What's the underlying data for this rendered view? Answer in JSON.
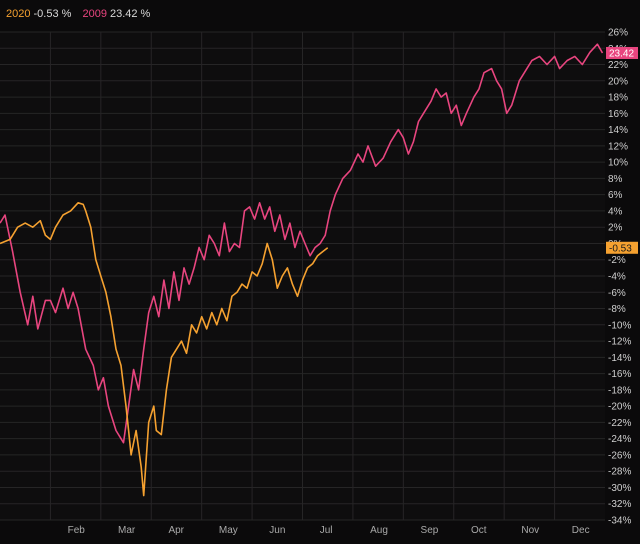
{
  "legend": [
    {
      "name": "2020",
      "value": "-0.53 %",
      "color": "#f5a130"
    },
    {
      "name": "2009",
      "value": "23.42 %",
      "color": "#e8457f"
    }
  ],
  "chart_data": {
    "type": "line",
    "x_unit": "month-fraction (0 = Jan 1, 12 = Dec 31)",
    "x_tick_labels": [
      "Feb",
      "Mar",
      "Apr",
      "May",
      "Jun",
      "Jul",
      "Aug",
      "Sep",
      "Oct",
      "Nov",
      "Dec"
    ],
    "x_tick_positions": [
      1.5,
      2.5,
      3.5,
      4.5,
      5.5,
      6.5,
      7.5,
      8.5,
      9.5,
      10.5,
      11.5
    ],
    "ylim": [
      -34,
      26
    ],
    "y_tick_step": 2,
    "y_tick_format": "{v}%",
    "grid": true,
    "series": [
      {
        "name": "2009",
        "color": "#e8457f",
        "last_value_label": "23.42",
        "last_value": 23.42,
        "points": [
          [
            0,
            2.5
          ],
          [
            0.1,
            3.5
          ],
          [
            0.25,
            -1
          ],
          [
            0.4,
            -6
          ],
          [
            0.55,
            -10
          ],
          [
            0.65,
            -6.5
          ],
          [
            0.75,
            -10.5
          ],
          [
            0.9,
            -7
          ],
          [
            1.0,
            -7
          ],
          [
            1.1,
            -8.5
          ],
          [
            1.25,
            -5.5
          ],
          [
            1.35,
            -8
          ],
          [
            1.45,
            -6
          ],
          [
            1.55,
            -8
          ],
          [
            1.7,
            -13
          ],
          [
            1.85,
            -15
          ],
          [
            1.95,
            -18
          ],
          [
            2.05,
            -16.5
          ],
          [
            2.15,
            -20
          ],
          [
            2.3,
            -23
          ],
          [
            2.45,
            -24.5
          ],
          [
            2.55,
            -20
          ],
          [
            2.65,
            -15.5
          ],
          [
            2.75,
            -18
          ],
          [
            2.85,
            -13
          ],
          [
            2.95,
            -8.5
          ],
          [
            3.05,
            -6.5
          ],
          [
            3.15,
            -9
          ],
          [
            3.25,
            -4.5
          ],
          [
            3.35,
            -8
          ],
          [
            3.45,
            -3.5
          ],
          [
            3.55,
            -7
          ],
          [
            3.65,
            -3
          ],
          [
            3.75,
            -5
          ],
          [
            3.85,
            -3
          ],
          [
            3.95,
            -0.5
          ],
          [
            4.05,
            -2
          ],
          [
            4.15,
            1
          ],
          [
            4.25,
            0
          ],
          [
            4.35,
            -1.5
          ],
          [
            4.45,
            2.5
          ],
          [
            4.55,
            -1
          ],
          [
            4.65,
            0
          ],
          [
            4.75,
            -0.5
          ],
          [
            4.85,
            4
          ],
          [
            4.95,
            4.5
          ],
          [
            5.05,
            3
          ],
          [
            5.15,
            5
          ],
          [
            5.25,
            3
          ],
          [
            5.35,
            4.5
          ],
          [
            5.45,
            1.5
          ],
          [
            5.55,
            3.5
          ],
          [
            5.65,
            0.5
          ],
          [
            5.75,
            2.5
          ],
          [
            5.85,
            -0.5
          ],
          [
            5.95,
            1.5
          ],
          [
            6.05,
            0
          ],
          [
            6.15,
            -1.5
          ],
          [
            6.25,
            -0.5
          ],
          [
            6.35,
            0
          ],
          [
            6.45,
            1
          ],
          [
            6.55,
            4
          ],
          [
            6.65,
            6
          ],
          [
            6.8,
            8
          ],
          [
            6.95,
            9
          ],
          [
            7.1,
            11
          ],
          [
            7.2,
            10
          ],
          [
            7.3,
            12
          ],
          [
            7.45,
            9.5
          ],
          [
            7.6,
            10.5
          ],
          [
            7.75,
            12.5
          ],
          [
            7.9,
            14
          ],
          [
            8.0,
            13
          ],
          [
            8.1,
            11
          ],
          [
            8.2,
            12.5
          ],
          [
            8.3,
            15
          ],
          [
            8.45,
            16.5
          ],
          [
            8.55,
            17.5
          ],
          [
            8.65,
            19
          ],
          [
            8.75,
            18
          ],
          [
            8.85,
            18.5
          ],
          [
            8.95,
            16
          ],
          [
            9.05,
            17
          ],
          [
            9.15,
            14.5
          ],
          [
            9.25,
            16
          ],
          [
            9.4,
            18
          ],
          [
            9.5,
            19
          ],
          [
            9.6,
            21
          ],
          [
            9.75,
            21.5
          ],
          [
            9.85,
            20
          ],
          [
            9.95,
            19
          ],
          [
            10.05,
            16
          ],
          [
            10.15,
            17
          ],
          [
            10.3,
            20
          ],
          [
            10.45,
            21.5
          ],
          [
            10.55,
            22.5
          ],
          [
            10.7,
            23
          ],
          [
            10.85,
            22
          ],
          [
            11.0,
            23
          ],
          [
            11.1,
            21.5
          ],
          [
            11.25,
            22.5
          ],
          [
            11.4,
            23
          ],
          [
            11.55,
            22
          ],
          [
            11.7,
            23.5
          ],
          [
            11.85,
            24.5
          ],
          [
            11.95,
            23.42
          ]
        ]
      },
      {
        "name": "2020",
        "color": "#f5a130",
        "last_value_label": "-0.53",
        "last_value": -0.53,
        "points": [
          [
            0,
            0
          ],
          [
            0.2,
            0.5
          ],
          [
            0.35,
            2
          ],
          [
            0.5,
            2.5
          ],
          [
            0.65,
            2
          ],
          [
            0.8,
            2.8
          ],
          [
            0.9,
            1
          ],
          [
            1.0,
            0.5
          ],
          [
            1.1,
            2
          ],
          [
            1.25,
            3.5
          ],
          [
            1.4,
            4
          ],
          [
            1.55,
            5
          ],
          [
            1.65,
            4.8
          ],
          [
            1.7,
            4
          ],
          [
            1.8,
            2
          ],
          [
            1.9,
            -2
          ],
          [
            2.0,
            -4
          ],
          [
            2.1,
            -6
          ],
          [
            2.2,
            -9
          ],
          [
            2.3,
            -13
          ],
          [
            2.4,
            -15
          ],
          [
            2.5,
            -20
          ],
          [
            2.55,
            -23
          ],
          [
            2.6,
            -26
          ],
          [
            2.7,
            -23
          ],
          [
            2.8,
            -27.5
          ],
          [
            2.85,
            -31
          ],
          [
            2.95,
            -22
          ],
          [
            3.05,
            -20
          ],
          [
            3.1,
            -23
          ],
          [
            3.2,
            -23.5
          ],
          [
            3.3,
            -18
          ],
          [
            3.4,
            -14
          ],
          [
            3.5,
            -13
          ],
          [
            3.6,
            -12
          ],
          [
            3.7,
            -13.5
          ],
          [
            3.8,
            -10
          ],
          [
            3.9,
            -11
          ],
          [
            4.0,
            -9
          ],
          [
            4.1,
            -10.5
          ],
          [
            4.2,
            -8.5
          ],
          [
            4.3,
            -10
          ],
          [
            4.4,
            -8
          ],
          [
            4.5,
            -9.5
          ],
          [
            4.6,
            -6.5
          ],
          [
            4.7,
            -6
          ],
          [
            4.8,
            -5
          ],
          [
            4.9,
            -5.5
          ],
          [
            5.0,
            -3.5
          ],
          [
            5.1,
            -4
          ],
          [
            5.2,
            -2.5
          ],
          [
            5.3,
            0
          ],
          [
            5.4,
            -2
          ],
          [
            5.5,
            -5.5
          ],
          [
            5.6,
            -4
          ],
          [
            5.7,
            -3
          ],
          [
            5.8,
            -5
          ],
          [
            5.9,
            -6.5
          ],
          [
            6.0,
            -4.5
          ],
          [
            6.1,
            -3
          ],
          [
            6.2,
            -2.5
          ],
          [
            6.3,
            -1.5
          ],
          [
            6.4,
            -1
          ],
          [
            6.5,
            -0.53
          ]
        ]
      }
    ]
  }
}
